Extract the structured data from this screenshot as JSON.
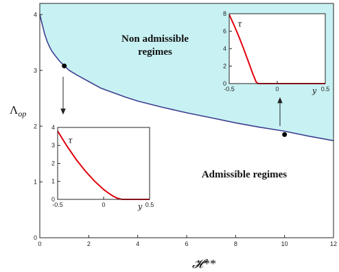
{
  "chart_data": [
    {
      "type": "line",
      "id": "main",
      "title": "",
      "xlabel": "𝓗**",
      "ylabel": "Λop",
      "xlim": [
        0,
        12
      ],
      "ylim": [
        0,
        4.2
      ],
      "xticks": [
        0,
        2,
        4,
        6,
        8,
        10,
        12
      ],
      "yticks": [
        0,
        1,
        2,
        3,
        4
      ],
      "grid": false,
      "series": [
        {
          "x": [
            0.0,
            0.1,
            0.2,
            0.3,
            0.4,
            0.5,
            0.6,
            0.8,
            1.0,
            1.2,
            1.5,
            2.0,
            2.5,
            3.0,
            3.5,
            4.0,
            5.0,
            6.0,
            7.0,
            8.0,
            9.0,
            10.0,
            11.0,
            12.0
          ],
          "y": [
            4.0,
            3.82,
            3.65,
            3.52,
            3.42,
            3.34,
            3.28,
            3.17,
            3.08,
            3.0,
            2.92,
            2.8,
            2.68,
            2.6,
            2.52,
            2.45,
            2.34,
            2.24,
            2.15,
            2.06,
            1.98,
            1.91,
            1.82,
            1.74
          ],
          "color": "#3b3e8f"
        }
      ],
      "regions": [
        {
          "label": "Non admissible regimes",
          "fill": "#c8f1f3"
        },
        {
          "label": "Admissible regimes",
          "fill": "#ffffff"
        }
      ],
      "markers": [
        {
          "x": 1.0,
          "y": 3.08,
          "color": "#000000"
        },
        {
          "x": 10.0,
          "y": 1.85,
          "color": "#000000"
        }
      ]
    },
    {
      "type": "line",
      "id": "inset-left",
      "title": "τ",
      "xlabel": "y",
      "xlim": [
        -0.5,
        0.5
      ],
      "ylim": [
        0,
        4
      ],
      "xticks": [
        -0.5,
        0,
        0.5
      ],
      "xtick_labels": [
        "-0.5",
        "0",
        "0.5"
      ],
      "yticks": [
        0,
        1,
        2,
        3,
        4
      ],
      "series": [
        {
          "x": [
            -0.5,
            -0.4,
            -0.3,
            -0.2,
            -0.1,
            0.0,
            0.05,
            0.1,
            0.15,
            0.2,
            0.3,
            0.4,
            0.5
          ],
          "y": [
            3.8,
            2.97,
            2.23,
            1.58,
            1.02,
            0.55,
            0.36,
            0.19,
            0.06,
            0.0,
            0.0,
            0.0,
            0.0
          ],
          "color": "#e0000a"
        }
      ]
    },
    {
      "type": "line",
      "id": "inset-right",
      "title": "τ",
      "xlabel": "y",
      "xlim": [
        -0.5,
        0.5
      ],
      "ylim": [
        0,
        8
      ],
      "xticks": [
        -0.5,
        0,
        0.5
      ],
      "xtick_labels": [
        "-0.5",
        "0",
        "0.5"
      ],
      "yticks": [
        0,
        2,
        4,
        6,
        8
      ],
      "series": [
        {
          "x": [
            -0.5,
            -0.45,
            -0.4,
            -0.35,
            -0.3,
            -0.25,
            -0.22,
            -0.2,
            -0.1,
            0.0,
            0.1,
            0.2,
            0.3,
            0.4,
            0.5
          ],
          "y": [
            7.9,
            6.7,
            5.4,
            4.0,
            2.5,
            1.0,
            0.2,
            0.0,
            0.0,
            0.0,
            0.0,
            0.0,
            0.0,
            0.0,
            0.0
          ],
          "color": "#e0000a"
        }
      ]
    }
  ],
  "colors": {
    "non_admissible_fill": "#c8f1f3",
    "curve": "#3b3e8f",
    "inset_curve": "#e0000a",
    "axis": "#222222"
  }
}
